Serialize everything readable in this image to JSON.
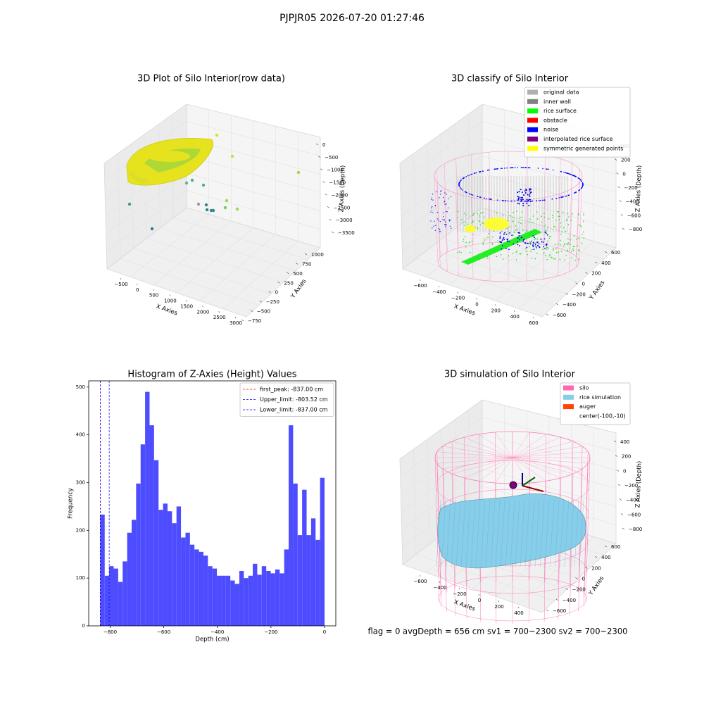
{
  "title": "PJPJR05 2026-07-20 01:27:46",
  "footer": "flag = 0     avgDepth = 656 cm  sv1 = 700~2300  sv2 = 700~2300",
  "chart_data": [
    {
      "type": "scatter3d",
      "title": "3D Plot of Silo Interior(row data)",
      "xlabel": "X Axies",
      "ylabel": "Y Axies",
      "zlabel": "Z Axies (Depth)",
      "xticks": [
        {
          "value": -500,
          "label": "−500"
        },
        0,
        500,
        1000,
        1500,
        2000,
        2500,
        3000
      ],
      "yticks": [
        {
          "value": -750,
          "label": "−750"
        },
        {
          "value": -500,
          "label": "−500"
        },
        {
          "value": -250,
          "label": "−250"
        },
        0,
        250,
        500,
        750,
        1000
      ],
      "zticks": [
        0,
        {
          "value": -500,
          "label": "−500"
        },
        {
          "value": -1000,
          "label": "−1000"
        },
        {
          "value": -1500,
          "label": "−1500"
        },
        {
          "value": -2000,
          "label": "−2000"
        },
        {
          "value": -2500,
          "label": "−2500"
        },
        {
          "value": -3000,
          "label": "−3000"
        },
        {
          "value": -3500,
          "label": "−3500"
        }
      ]
    },
    {
      "type": "scatter3d",
      "title": "3D classify of Silo Interior",
      "xlabel": "X Axies",
      "ylabel": "Y Axies",
      "zlabel": "Z Axies (Depth)",
      "xticks": [
        {
          "value": -600,
          "label": "−600"
        },
        {
          "value": -400,
          "label": "−400"
        },
        {
          "value": -200,
          "label": "−200"
        },
        0,
        200,
        400,
        600
      ],
      "yticks": [
        {
          "value": -600,
          "label": "−600"
        },
        {
          "value": -400,
          "label": "−400"
        },
        {
          "value": -200,
          "label": "−200"
        },
        0,
        200,
        400,
        600
      ],
      "zticks": [
        400,
        200,
        0,
        {
          "value": -200,
          "label": "−200"
        },
        {
          "value": -400,
          "label": "−400"
        },
        {
          "value": -600,
          "label": "−600"
        },
        {
          "value": -800,
          "label": "−800"
        }
      ],
      "legend": [
        {
          "name": "original data",
          "color": "#b0b0b0"
        },
        {
          "name": "inner wall",
          "color": "#808080"
        },
        {
          "name": "rice surface",
          "color": "#00ff00"
        },
        {
          "name": "obstacle",
          "color": "#ff0000"
        },
        {
          "name": "noise",
          "color": "#0000ff"
        },
        {
          "name": "interpolated rice surface",
          "color": "#800080"
        },
        {
          "name": "symmetric generated points",
          "color": "#ffff00"
        }
      ]
    },
    {
      "type": "histogram",
      "title": "Histogram of Z-Axies (Height) Values",
      "xlabel": "Depth (cm)",
      "ylabel": "Frequency",
      "color": "#4d4dff",
      "bins": [
        -837,
        -820.26,
        -803.52,
        -786.78,
        -770.04,
        -753.3,
        -736.56,
        -719.82,
        -703.08,
        -686.34,
        -669.6,
        -652.86,
        -636.12,
        -619.38,
        -602.64,
        -585.9,
        -569.16,
        -552.42,
        -535.68,
        -518.94,
        -502.2,
        -485.46,
        -468.72,
        -451.98,
        -435.24,
        -418.5,
        -401.76,
        -385.02,
        -368.28,
        -351.54,
        -334.8,
        -318.06,
        -301.32,
        -284.58,
        -267.84,
        -251.1,
        -234.36,
        -217.62,
        -200.88,
        -184.14,
        -167.4,
        -150.66,
        -133.92,
        -117.18,
        -100.44,
        -83.7,
        -66.96,
        -50.22,
        -33.48,
        -16.74,
        0
      ],
      "counts": [
        233,
        105,
        125,
        120,
        92,
        135,
        195,
        222,
        298,
        380,
        490,
        420,
        347,
        243,
        256,
        240,
        215,
        250,
        185,
        195,
        170,
        160,
        155,
        147,
        125,
        120,
        105,
        105,
        105,
        95,
        88,
        115,
        100,
        105,
        130,
        107,
        125,
        115,
        110,
        118,
        110,
        160,
        420,
        298,
        190,
        285,
        190,
        225,
        180,
        310
      ],
      "xlim": [
        -880,
        42
      ],
      "ylim": [
        0,
        513
      ],
      "xticks": [
        {
          "value": -800,
          "label": "−800"
        },
        {
          "value": -600,
          "label": "−600"
        },
        {
          "value": -400,
          "label": "−400"
        },
        {
          "value": -200,
          "label": "−200"
        },
        0
      ],
      "yticks": [
        0,
        100,
        200,
        300,
        400,
        500
      ],
      "lines": [
        {
          "name": "first_peak: -837.00 cm",
          "value": -837,
          "color": "#ff0000"
        },
        {
          "name": "Upper_limit: -803.52 cm",
          "value": -803.52,
          "color": "#0000ff"
        },
        {
          "name": "Lower_limit: -837.00 cm",
          "value": -837,
          "color": "#0000ff"
        }
      ],
      "legend_loc": "upper right"
    },
    {
      "type": "surface3d",
      "title": "3D simulation of Silo Interior",
      "xlabel": "X Axies",
      "ylabel": "Y Axies",
      "zlabel": "Z Axies (Depth)",
      "xticks": [
        {
          "value": -600,
          "label": "−600"
        },
        {
          "value": -400,
          "label": "−400"
        },
        {
          "value": -200,
          "label": "−200"
        },
        0,
        200,
        400
      ],
      "yticks": [
        {
          "value": -600,
          "label": "−600"
        },
        {
          "value": -400,
          "label": "−400"
        },
        {
          "value": -200,
          "label": "−200"
        },
        0,
        200,
        400,
        600
      ],
      "zticks": [
        400,
        200,
        0,
        {
          "value": -200,
          "label": "−200"
        },
        {
          "value": -400,
          "label": "−400"
        },
        {
          "value": -600,
          "label": "−600"
        },
        {
          "value": -800,
          "label": "−800"
        }
      ],
      "legend": [
        {
          "name": "silo",
          "color": "#ff69b4"
        },
        {
          "name": "rice simulation",
          "color": "#87ceeb"
        },
        {
          "name": "auger",
          "color": "#ff4500"
        },
        {
          "name": "center(-100,-10)"
        }
      ]
    }
  ]
}
